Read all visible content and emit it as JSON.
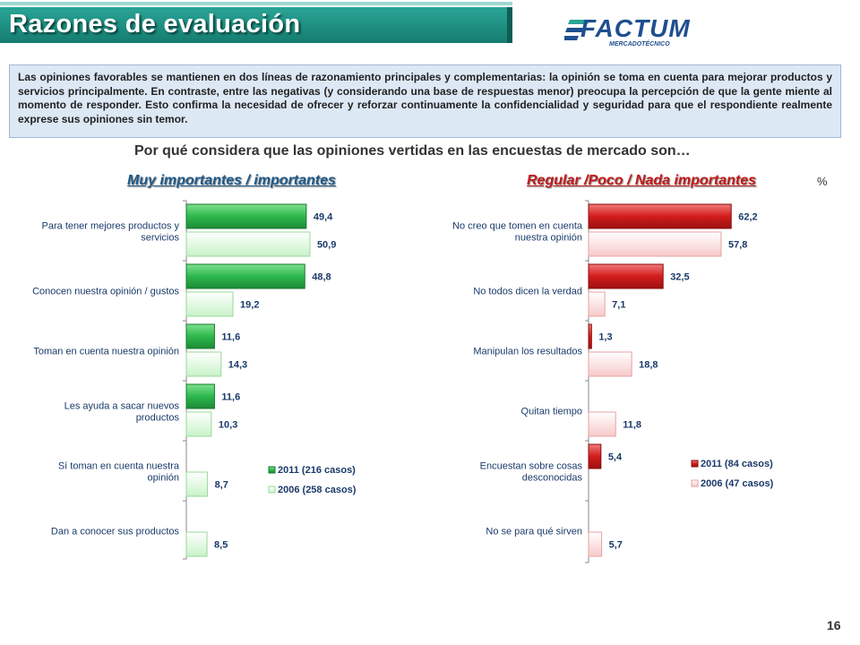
{
  "header": {
    "title": "Razones de evaluación",
    "logo_text": "FACTUM",
    "logo_sub": "MERCADOTÉCNICO"
  },
  "intro": "Las opiniones favorables se mantienen en dos líneas de razonamiento principales y complementarias: la opinión se toma en cuenta para mejorar productos y servicios principalmente. En contraste, entre las negativas (y considerando una base de respuestas menor) preocupa la percepción de que la gente miente al momento de responder. Esto confirma la necesidad de ofrecer y reforzar continuamente la confidencialidad y seguridad para que el respondiente realmente exprese sus opiniones sin temor.",
  "question": "Por qué considera que las opiniones vertidas en las encuestas de mercado son…",
  "unit": "%",
  "page_number": "16",
  "chart_data": [
    {
      "type": "bar",
      "orientation": "horizontal",
      "title": "Muy importantes / importantes",
      "categories": [
        [
          "Para tener mejores productos y",
          "servicios"
        ],
        [
          "Conocen nuestra opinión / gustos"
        ],
        [
          "Toman en cuenta nuestra opinión"
        ],
        [
          "Les ayuda a sacar nuevos",
          "productos"
        ],
        [
          "Sí toman en cuenta nuestra",
          "opinión"
        ],
        [
          "Dan a conocer sus productos"
        ]
      ],
      "series": [
        {
          "name": "2011 (216 casos)",
          "color": "#2db84d",
          "values": [
            49.4,
            48.8,
            11.6,
            11.6,
            null,
            null
          ],
          "labels": [
            "49,4",
            "48,8",
            "11,6",
            "11,6",
            "",
            ""
          ]
        },
        {
          "name": "2006 (258 casos)",
          "color": "#d9f8d9",
          "values": [
            50.9,
            19.2,
            14.3,
            10.3,
            8.7,
            8.5
          ],
          "labels": [
            "50,9",
            "19,2",
            "14,3",
            "10,3",
            "8,7",
            "8,5"
          ]
        }
      ],
      "xlim": [
        0,
        100
      ],
      "legend": "bottom-right"
    },
    {
      "type": "bar",
      "orientation": "horizontal",
      "title": "Regular /Poco / Nada importantes",
      "categories": [
        [
          "No creo que tomen en cuenta",
          "nuestra opinión"
        ],
        [
          "No todos dicen la verdad"
        ],
        [
          "Manipulan los resultados"
        ],
        [
          "Quitan tiempo"
        ],
        [
          "Encuestan sobre cosas",
          "desconocidas"
        ],
        [
          "No se para qué sirven"
        ]
      ],
      "series": [
        {
          "name": "2011 (84 casos)",
          "color": "#d31c1c",
          "values": [
            62.2,
            32.5,
            1.3,
            null,
            5.4,
            null
          ],
          "labels": [
            "62,2",
            "32,5",
            "1,3",
            "",
            "5,4",
            ""
          ]
        },
        {
          "name": "2006 (47 casos)",
          "color": "#fbd8d8",
          "values": [
            57.8,
            7.1,
            18.8,
            11.8,
            null,
            5.7
          ],
          "labels": [
            "57,8",
            "7,1",
            "18,8",
            "11,8",
            "",
            "5,7"
          ]
        }
      ],
      "xlim": [
        0,
        100
      ],
      "legend": "bottom-right"
    }
  ]
}
